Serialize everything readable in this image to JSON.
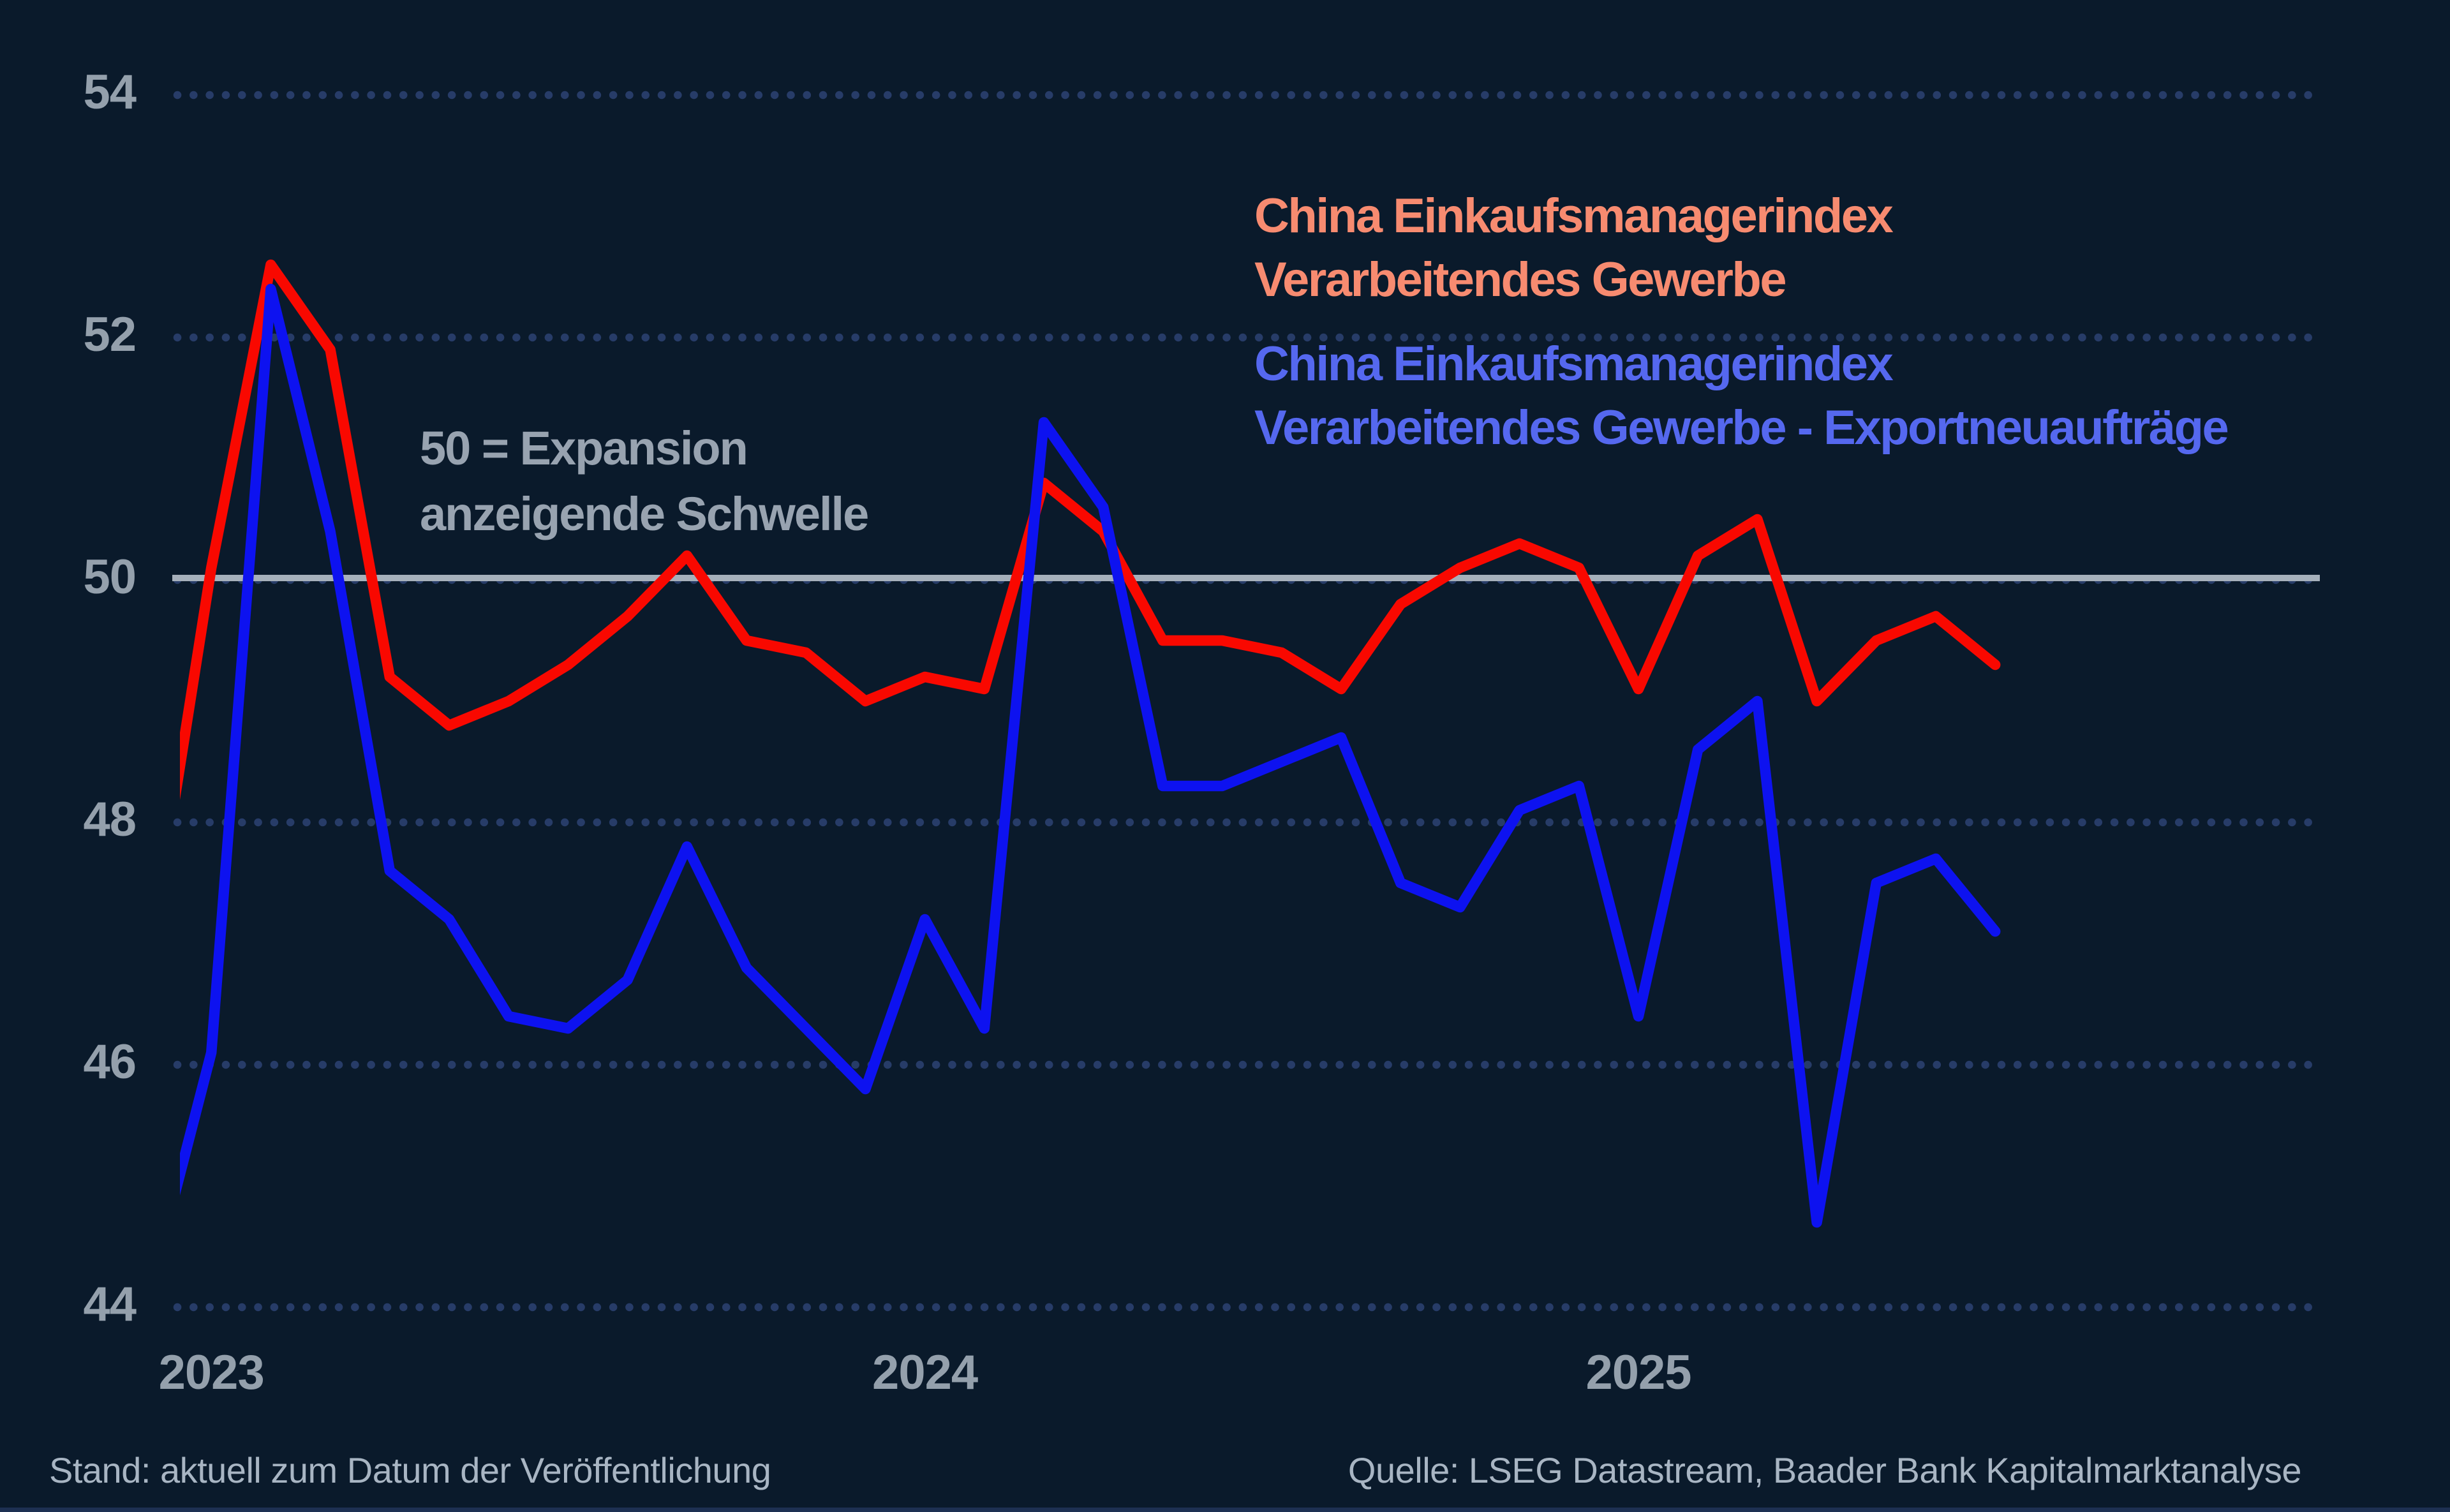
{
  "legend": {
    "series1_line1": "China Einkaufsmanagerindex",
    "series1_line2": "Verarbeitendes Gewerbe",
    "series2_line1": "China Einkaufsmanagerindex",
    "series2_line2": "Verarbeitendes Gewerbe - Exportneuaufträge"
  },
  "annotation": {
    "line1": "50 = Expansion",
    "line2": "anzeigende Schwelle"
  },
  "footer": {
    "left": "Stand: aktuell zum Datum der Veröffentlichung",
    "right": "Quelle: LSEG Datastream, Baader Bank Kapitalmarktanalyse"
  },
  "colors": {
    "background": "#0a1a2b",
    "grid_dots": "#273c68",
    "threshold_line": "#a6b0bb",
    "tick_label": "#94a0ac",
    "annotation_text": "#98a3b0",
    "footer_text": "#a8b5c3",
    "series1_line": "#f90800",
    "series2_line": "#0d12f0",
    "legend_series1_text": "#f78b70",
    "legend_series2_text": "#5568ef"
  },
  "chart_data": {
    "type": "line",
    "title": "",
    "xlabel": "",
    "ylabel": "",
    "ylim": [
      44,
      54
    ],
    "y_ticks": [
      54,
      52,
      50,
      48,
      46,
      44
    ],
    "grid": "horizontal dotted",
    "legend_position": "top-right",
    "threshold": {
      "value": 50,
      "style": "solid",
      "note": "50 = Expansion anzeigende Schwelle"
    },
    "x": [
      "2022-12",
      "2023-01",
      "2023-02",
      "2023-03",
      "2023-04",
      "2023-05",
      "2023-06",
      "2023-07",
      "2023-08",
      "2023-09",
      "2023-10",
      "2023-11",
      "2023-12",
      "2024-01",
      "2024-02",
      "2024-03",
      "2024-04",
      "2024-05",
      "2024-06",
      "2024-07",
      "2024-08",
      "2024-09",
      "2024-10",
      "2024-11",
      "2024-12",
      "2025-01",
      "2025-02",
      "2025-03",
      "2025-04",
      "2025-05",
      "2025-06",
      "2025-07"
    ],
    "x_ticks": [
      {
        "label": "2023",
        "month": "2023-01"
      },
      {
        "label": "2024",
        "month": "2024-01"
      },
      {
        "label": "2025",
        "month": "2025-01"
      }
    ],
    "series": [
      {
        "name": "China Einkaufsmanagerindex Verarbeitendes Gewerbe",
        "color_key": "series1_line",
        "values": [
          47.0,
          50.1,
          52.6,
          51.9,
          49.2,
          48.8,
          49.0,
          49.3,
          49.7,
          50.2,
          49.5,
          49.4,
          49.0,
          49.2,
          49.1,
          50.8,
          50.4,
          49.5,
          49.5,
          49.4,
          49.1,
          49.8,
          50.1,
          50.3,
          50.1,
          49.1,
          50.2,
          50.5,
          49.0,
          49.5,
          49.7,
          49.3
        ]
      },
      {
        "name": "China Einkaufsmanagerindex Verarbeitendes Gewerbe - Exportneuaufträge",
        "color_key": "series2_line",
        "values": [
          44.2,
          46.1,
          52.4,
          50.4,
          47.6,
          47.2,
          46.4,
          46.3,
          46.7,
          47.8,
          46.8,
          46.3,
          45.8,
          47.2,
          46.3,
          51.3,
          50.6,
          48.3,
          48.3,
          48.5,
          48.7,
          47.5,
          47.3,
          48.1,
          48.3,
          46.4,
          48.6,
          49.0,
          44.7,
          47.5,
          47.7,
          47.1
        ]
      }
    ]
  }
}
